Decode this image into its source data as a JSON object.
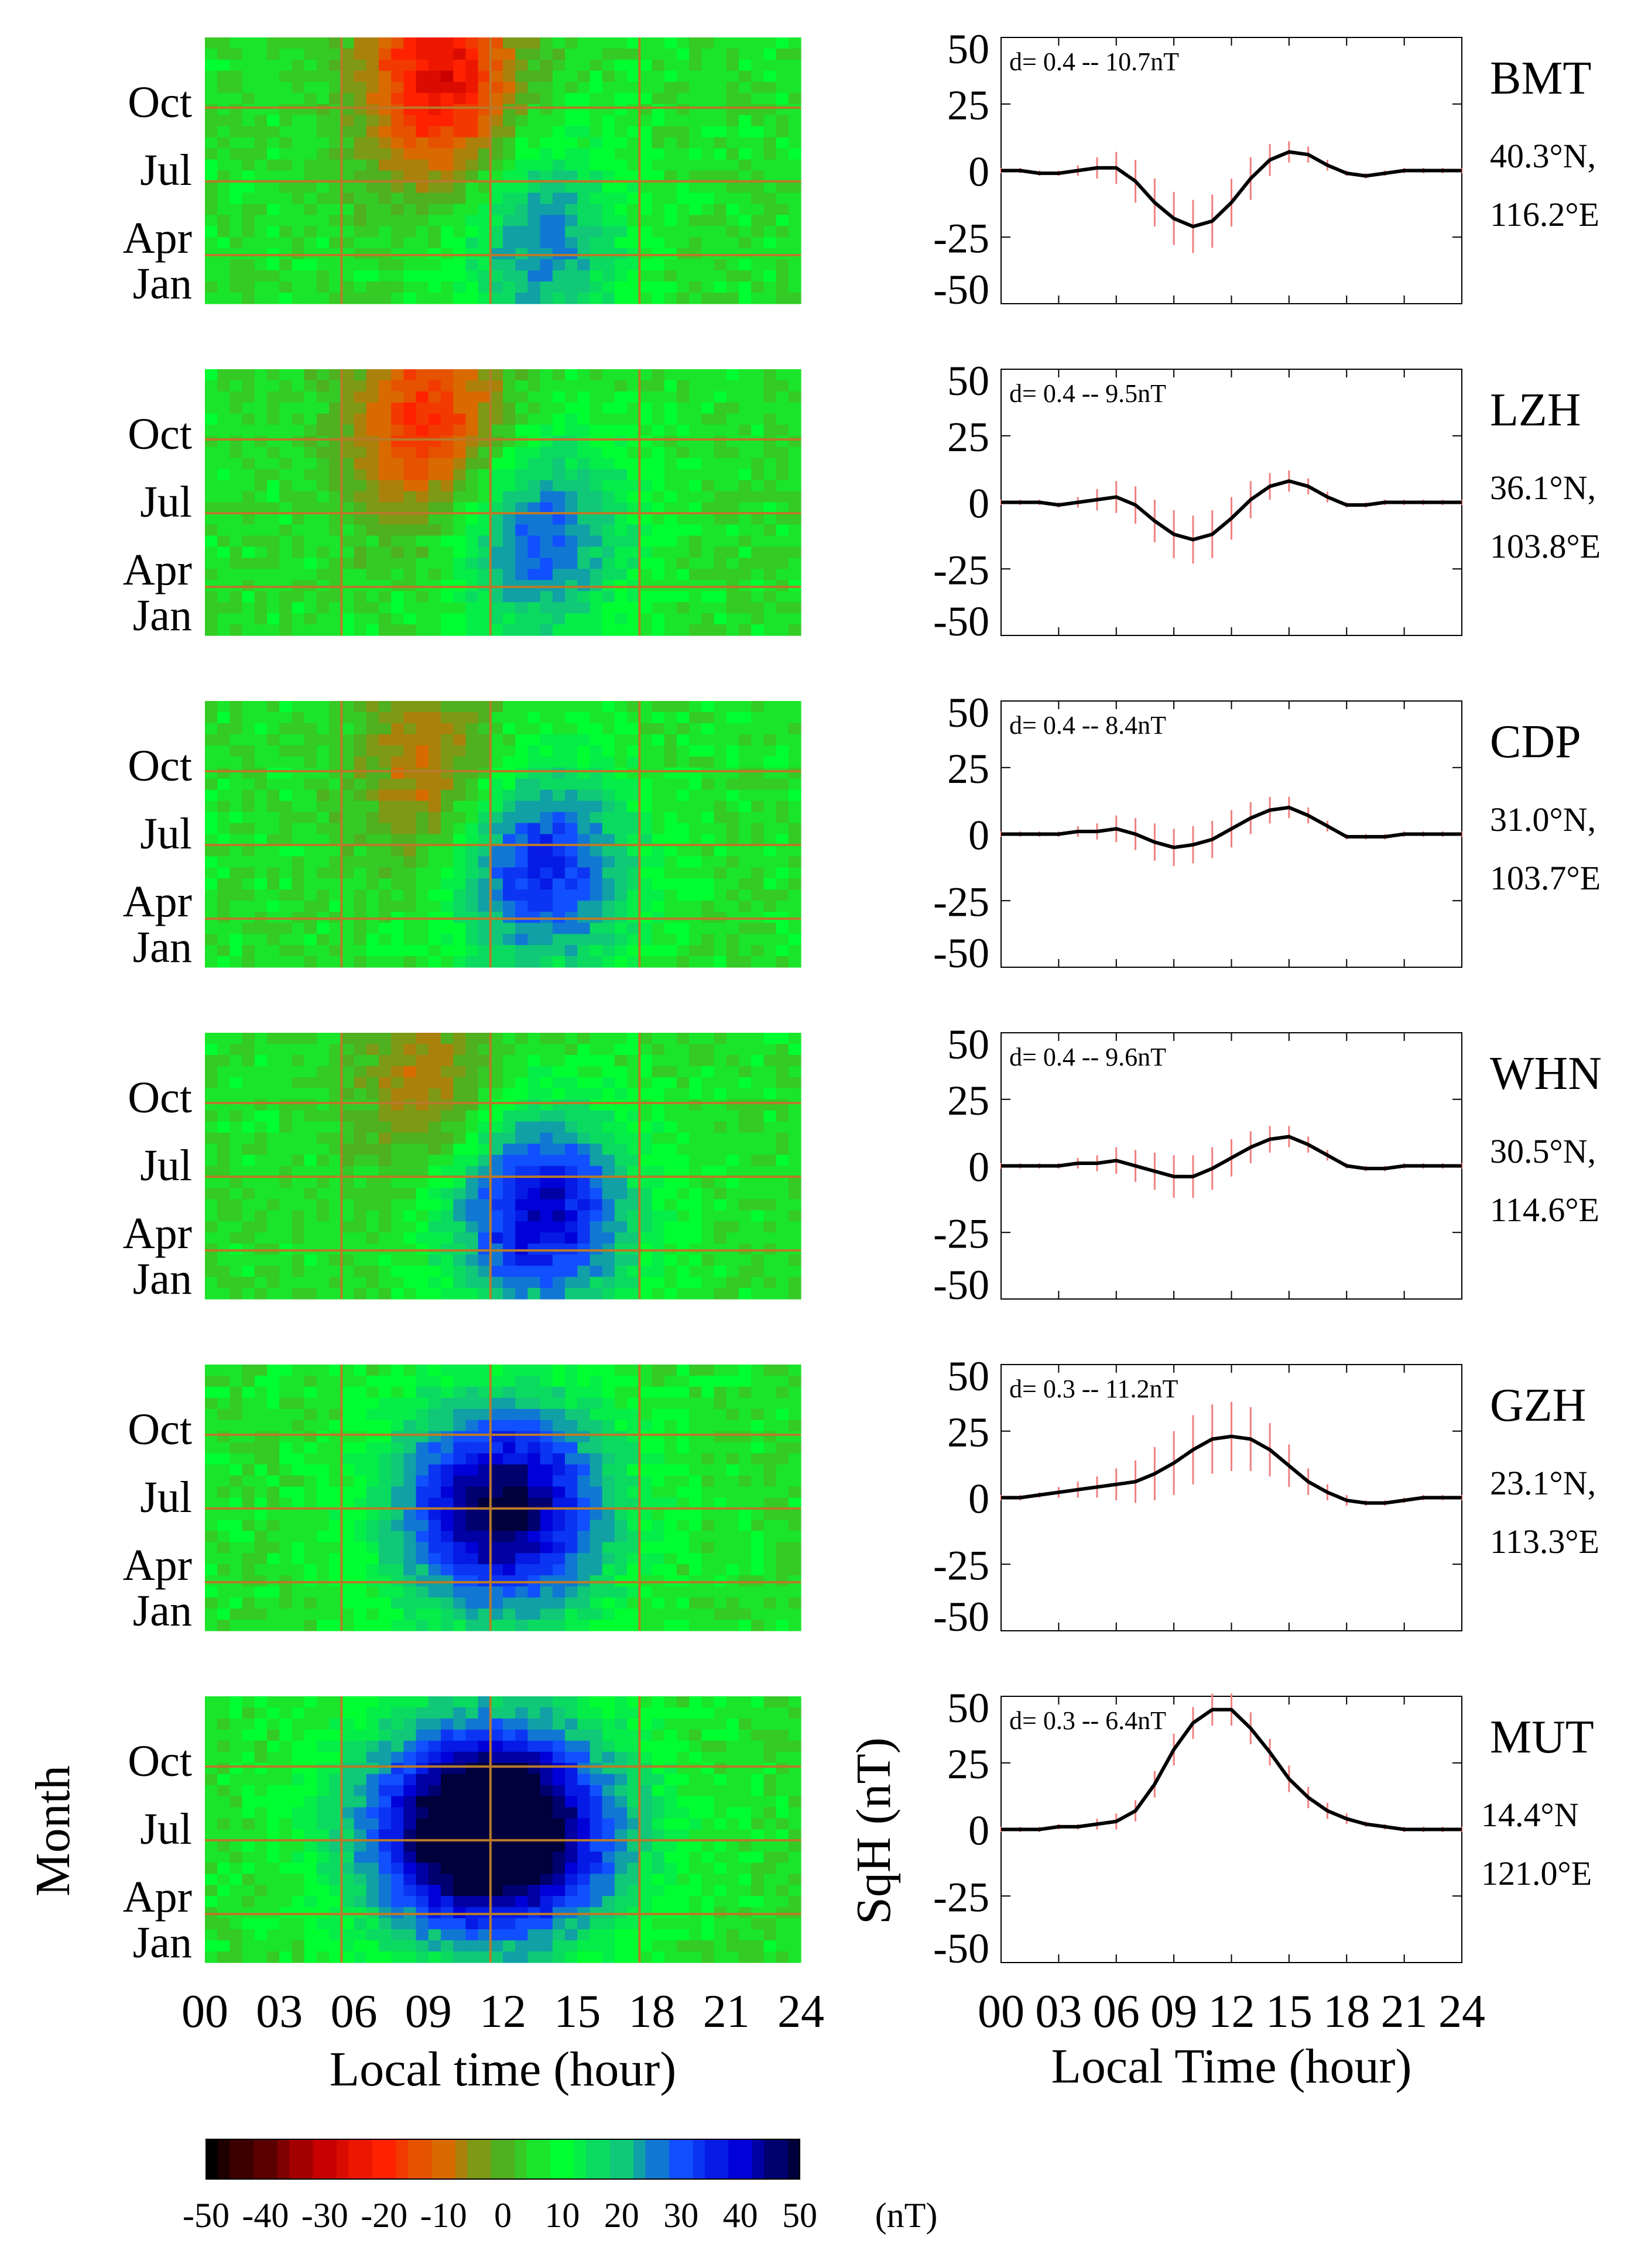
{
  "figure": {
    "heatmap_xlabel": "Local time (hour)",
    "heatmap_ylabel": "Month",
    "line_xlabel": "Local Time (hour)",
    "line_ylabel": "SqH (nT)",
    "x_ticks": [
      "00",
      "03",
      "06",
      "09",
      "12",
      "15",
      "18",
      "21",
      "24"
    ],
    "month_ticks": [
      "Oct",
      "Jul",
      "Apr",
      "Jan"
    ],
    "y_ticks": [
      "50",
      "25",
      "0",
      "-25",
      "-50"
    ],
    "colorbar": {
      "tick_labels": [
        "-50",
        "-40",
        "-30",
        "-20",
        "-10",
        "0",
        "10",
        "20",
        "30",
        "40",
        "50"
      ],
      "unit": "(nT)",
      "range": [
        -50,
        50
      ],
      "colors": [
        "#000000",
        "#5a0000",
        "#c80000",
        "#ff2200",
        "#d86a00",
        "#4fb020",
        "#00ff30",
        "#10c878",
        "#1050ff",
        "#0000d8",
        "#00003a"
      ]
    },
    "colors": {
      "line": "#000000",
      "errorbar": "#f08080",
      "gridline": "#b87a2a"
    }
  },
  "chart_data": {
    "type": "heatmap + line",
    "description_x": "Local time (hour), 0-24",
    "heatmap_ylim_months": [
      1,
      12
    ],
    "line_ylim": [
      -50,
      50
    ],
    "stations": [
      {
        "code": "BMT",
        "lat": "40.3°N,",
        "lon": "116.2°E",
        "dev_label": "d= 0.4 -- 10.7nT",
        "hours": [
          0,
          1,
          2,
          3,
          4,
          5,
          6,
          7,
          8,
          9,
          10,
          11,
          12,
          13,
          14,
          15,
          16,
          17,
          18,
          19,
          20,
          21,
          22,
          23,
          24
        ],
        "sqh": [
          0,
          0,
          -1,
          -1,
          0,
          1,
          1,
          -4,
          -12,
          -18,
          -21,
          -19,
          -12,
          -3,
          4,
          7,
          6,
          2,
          -1,
          -2,
          -1,
          0,
          0,
          0,
          0
        ],
        "err": [
          1,
          1,
          1,
          1,
          2,
          4,
          6,
          8,
          9,
          10,
          10,
          10,
          9,
          8,
          6,
          4,
          3,
          2,
          1,
          1,
          1,
          1,
          1,
          1,
          1
        ],
        "peak_hour": 9.5,
        "peak_amp": -32,
        "peak_month": 10.5,
        "peak_width": 2.2,
        "dip_hour": 13.5,
        "dip_amp": 20,
        "dip_month": 3.5,
        "dip_width": 2.2
      },
      {
        "code": "LZH",
        "lat": "36.1°N,",
        "lon": "103.8°E",
        "dev_label": "d= 0.4 -- 9.5nT",
        "hours": [
          0,
          1,
          2,
          3,
          4,
          5,
          6,
          7,
          8,
          9,
          10,
          11,
          12,
          13,
          14,
          15,
          16,
          17,
          18,
          19,
          20,
          21,
          22,
          23,
          24
        ],
        "sqh": [
          0,
          0,
          0,
          -1,
          0,
          1,
          2,
          -1,
          -7,
          -12,
          -14,
          -12,
          -6,
          1,
          6,
          8,
          6,
          2,
          -1,
          -1,
          0,
          0,
          0,
          0,
          0
        ],
        "err": [
          1,
          1,
          1,
          1,
          2,
          4,
          6,
          7,
          8,
          9,
          9,
          9,
          8,
          7,
          5,
          4,
          3,
          2,
          1,
          1,
          1,
          1,
          1,
          1,
          1
        ],
        "peak_hour": 9,
        "peak_amp": -25,
        "peak_month": 10,
        "peak_width": 2.2,
        "dip_hour": 13.5,
        "dip_amp": 24,
        "dip_month": 5,
        "dip_width": 2.4
      },
      {
        "code": "CDP",
        "lat": "31.0°N,",
        "lon": "103.7°E",
        "dev_label": "d= 0.4 -- 8.4nT",
        "hours": [
          0,
          1,
          2,
          3,
          4,
          5,
          6,
          7,
          8,
          9,
          10,
          11,
          12,
          13,
          14,
          15,
          16,
          17,
          18,
          19,
          20,
          21,
          22,
          23,
          24
        ],
        "sqh": [
          0,
          0,
          0,
          0,
          1,
          1,
          2,
          0,
          -3,
          -5,
          -4,
          -2,
          2,
          6,
          9,
          10,
          7,
          3,
          -1,
          -1,
          -1,
          0,
          0,
          0,
          0
        ],
        "err": [
          1,
          1,
          1,
          1,
          2,
          3,
          5,
          6,
          7,
          7,
          7,
          7,
          7,
          6,
          5,
          4,
          3,
          2,
          1,
          1,
          1,
          1,
          1,
          1,
          1
        ],
        "peak_hour": 9,
        "peak_amp": -16,
        "peak_month": 9,
        "peak_width": 2.0,
        "dip_hour": 13.5,
        "dip_amp": 30,
        "dip_month": 5,
        "dip_width": 2.6
      },
      {
        "code": "WHN",
        "lat": "30.5°N,",
        "lon": "114.6°E",
        "dev_label": "d= 0.4 -- 9.6nT",
        "hours": [
          0,
          1,
          2,
          3,
          4,
          5,
          6,
          7,
          8,
          9,
          10,
          11,
          12,
          13,
          14,
          15,
          16,
          17,
          18,
          19,
          20,
          21,
          22,
          23,
          24
        ],
        "sqh": [
          0,
          0,
          0,
          0,
          1,
          1,
          2,
          0,
          -2,
          -4,
          -4,
          -1,
          3,
          7,
          10,
          11,
          8,
          4,
          0,
          -1,
          -1,
          0,
          0,
          0,
          0
        ],
        "err": [
          1,
          1,
          1,
          1,
          2,
          3,
          5,
          6,
          7,
          8,
          8,
          8,
          7,
          6,
          5,
          4,
          3,
          2,
          1,
          1,
          1,
          1,
          1,
          1,
          1
        ],
        "peak_hour": 9,
        "peak_amp": -14,
        "peak_month": 10,
        "peak_width": 2.0,
        "dip_hour": 13.5,
        "dip_amp": 36,
        "dip_month": 4.5,
        "dip_width": 2.6
      },
      {
        "code": "GZH",
        "lat": "23.1°N,",
        "lon": "113.3°E",
        "dev_label": "d= 0.3 -- 11.2nT",
        "hours": [
          0,
          1,
          2,
          3,
          4,
          5,
          6,
          7,
          8,
          9,
          10,
          11,
          12,
          13,
          14,
          15,
          16,
          17,
          18,
          19,
          20,
          21,
          22,
          23,
          24
        ],
        "sqh": [
          0,
          0,
          1,
          2,
          3,
          4,
          5,
          6,
          9,
          13,
          18,
          22,
          23,
          22,
          18,
          12,
          6,
          2,
          -1,
          -2,
          -2,
          -1,
          0,
          0,
          0
        ],
        "err": [
          1,
          1,
          1,
          2,
          3,
          4,
          6,
          8,
          10,
          12,
          13,
          13,
          13,
          12,
          10,
          8,
          5,
          3,
          2,
          1,
          1,
          1,
          1,
          1,
          1
        ],
        "peak_hour": 12,
        "peak_amp": 44,
        "peak_month": 6,
        "peak_width": 3.0,
        "dip_hour": 12,
        "dip_amp": 0,
        "dip_month": 6,
        "dip_width": 3.0
      },
      {
        "code": "MUT",
        "lat": "14.4°N",
        "lon": "121.0°E",
        "dev_label": "d= 0.3 -- 6.4nT",
        "hours": [
          0,
          1,
          2,
          3,
          4,
          5,
          6,
          7,
          8,
          9,
          10,
          11,
          12,
          13,
          14,
          15,
          16,
          17,
          18,
          19,
          20,
          21,
          22,
          23,
          24
        ],
        "sqh": [
          0,
          0,
          0,
          1,
          1,
          2,
          3,
          7,
          17,
          30,
          40,
          45,
          45,
          38,
          29,
          19,
          12,
          7,
          4,
          2,
          1,
          0,
          0,
          0,
          0
        ],
        "err": [
          1,
          1,
          1,
          1,
          1,
          2,
          3,
          4,
          5,
          6,
          6,
          6,
          6,
          6,
          5,
          5,
          4,
          3,
          2,
          1,
          1,
          1,
          1,
          1,
          1
        ],
        "peak_hour": 11.5,
        "peak_amp": 62,
        "peak_month": 6.5,
        "peak_width": 3.4,
        "dip_hour": 11.5,
        "dip_amp": 0,
        "dip_month": 6.5,
        "dip_width": 3.4
      }
    ]
  }
}
